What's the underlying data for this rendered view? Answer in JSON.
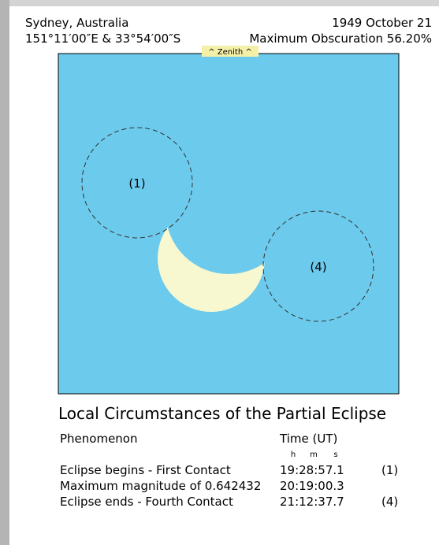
{
  "header": {
    "location": "Sydney, Australia",
    "coordinates": "151°11′00″E & 33°54′00″S",
    "date": "1949 October 21",
    "obscuration": "Maximum Obscuration 56.20%"
  },
  "diagram": {
    "zenith": "^ Zenith ^",
    "contact_labels": [
      "(1)",
      "(4)"
    ]
  },
  "table": {
    "title": "Local Circumstances of the Partial Eclipse",
    "columns": [
      "Phenomenon",
      "Time (UT)"
    ],
    "units": [
      "h",
      "m",
      "s"
    ],
    "rows": [
      [
        "Eclipse begins - First Contact",
        "19:28:57.1",
        "(1)"
      ],
      [
        "Maximum magnitude of 0.642432",
        "20:19:00.3"
      ],
      [
        "Eclipse ends - Fourth Contact",
        "21:12:37.7",
        "(4)"
      ]
    ]
  }
}
